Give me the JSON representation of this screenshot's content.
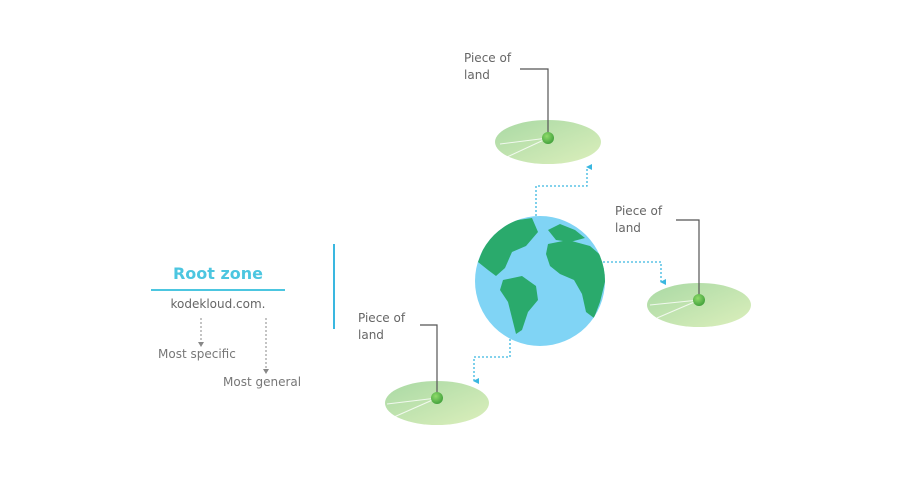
{
  "root_zone": {
    "title": "Root zone",
    "domain": "kodekloud.com."
  },
  "specificity": {
    "most_specific": "Most specific",
    "most_general": "Most general"
  },
  "lands": {
    "top": "Piece of\nland",
    "right": "Piece of\nland",
    "bottom": "Piece of\nland"
  },
  "colors": {
    "accent": "#4cc6e0",
    "arrow": "#3ab7e0",
    "ocean": "#7fd3f5",
    "continent": "#2aaa6c",
    "land_light": "#d3ecb6",
    "land_dark": "#a8d6a0",
    "pin": "#59b84b",
    "text": "#666666"
  }
}
